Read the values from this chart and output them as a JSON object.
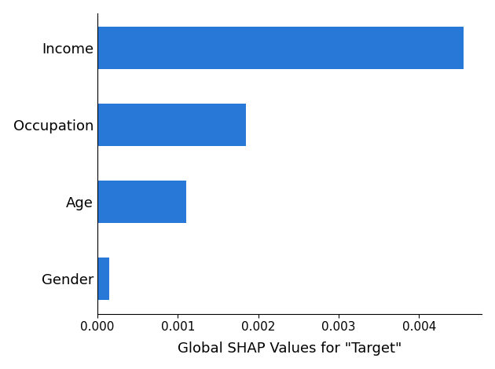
{
  "categories": [
    "Gender",
    "Age",
    "Occupation",
    "Income"
  ],
  "values": [
    0.00015,
    0.0011,
    0.00185,
    0.00455
  ],
  "bar_color": "#2878d8",
  "xlabel": "Global SHAP Values for \"Target\"",
  "xlim": [
    0,
    0.00478
  ],
  "xticks": [
    0.0,
    0.001,
    0.002,
    0.003,
    0.004
  ],
  "xlabel_fontsize": 13,
  "tick_fontsize": 11,
  "ytick_fontsize": 13,
  "bar_height": 0.55,
  "background_color": "#ffffff"
}
